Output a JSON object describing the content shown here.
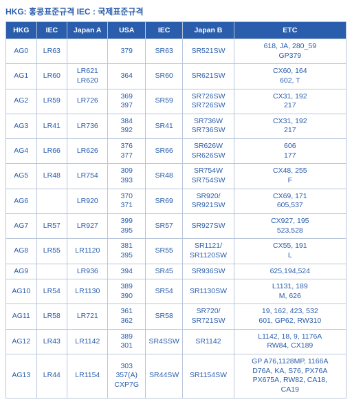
{
  "title": "HKG: 홍콩표준규격 IEC : 국제표준규격",
  "headers": [
    "HKG",
    "IEC",
    "Japan A",
    "USA",
    "IEC",
    "Japan B",
    "ETC"
  ],
  "rows": [
    [
      "AG0",
      "LR63",
      "",
      "379",
      "SR63",
      "SR521SW",
      "618, JA, 280_59\nGP379"
    ],
    [
      "AG1",
      "LR60",
      "LR621\nLR620",
      "364",
      "SR60",
      "SR621SW",
      "CX60, 164\n602, T"
    ],
    [
      "AG2",
      "LR59",
      "LR726",
      "369\n397",
      "SR59",
      "SR726SW\nSR726SW",
      "CX31, 192\n217"
    ],
    [
      "AG3",
      "LR41",
      "LR736",
      "384\n392",
      "SR41",
      "SR736W\nSR736SW",
      "CX31, 192\n217"
    ],
    [
      "AG4",
      "LR66",
      "LR626",
      "376\n377",
      "SR66",
      "SR626W\nSR626SW",
      "606\n177"
    ],
    [
      "AG5",
      "LR48",
      "LR754",
      "309\n393",
      "SR48",
      "SR754W\nSR754SW",
      "CX48, 255\nF"
    ],
    [
      "AG6",
      "",
      "LR920",
      "370\n371",
      "SR69",
      "SR920/\nSR921SW",
      "CX69, 171\n605,537"
    ],
    [
      "AG7",
      "LR57",
      "LR927",
      "399\n395",
      "SR57",
      "SR927SW",
      "CX927, 195\n523,528"
    ],
    [
      "AG8",
      "LR55",
      "LR1120",
      "381\n395",
      "SR55",
      "SR1121/\nSR1120SW",
      "CX55, 191\nL"
    ],
    [
      "AG9",
      "",
      "LR936",
      "394",
      "SR45",
      "SR936SW",
      "625,194,524"
    ],
    [
      "AG10",
      "LR54",
      "LR1130",
      "389\n390",
      "SR54",
      "SR1130SW",
      "L1131, 189\nM, 626"
    ],
    [
      "AG11",
      "LR58",
      "LR721",
      "361\n362",
      "SR58",
      "SR720/\nSR721SW",
      "19, 162, 423, 532\n601, GP62, RW310"
    ],
    [
      "AG12",
      "LR43",
      "LR1142",
      "389\n301",
      "SR4SSW",
      "SR1142",
      "L1142, 18, 9, 1176A\nRW84, CX189"
    ],
    [
      "AG13",
      "LR44",
      "LR1154",
      "303\n357(A)\nCXP7G",
      "SR44SW",
      "SR1154SW",
      "GP A76,1128MP, 1166A\nD76A, KA, S76, PX76A\nPX675A, RW82, CA18,\nCA19"
    ]
  ]
}
